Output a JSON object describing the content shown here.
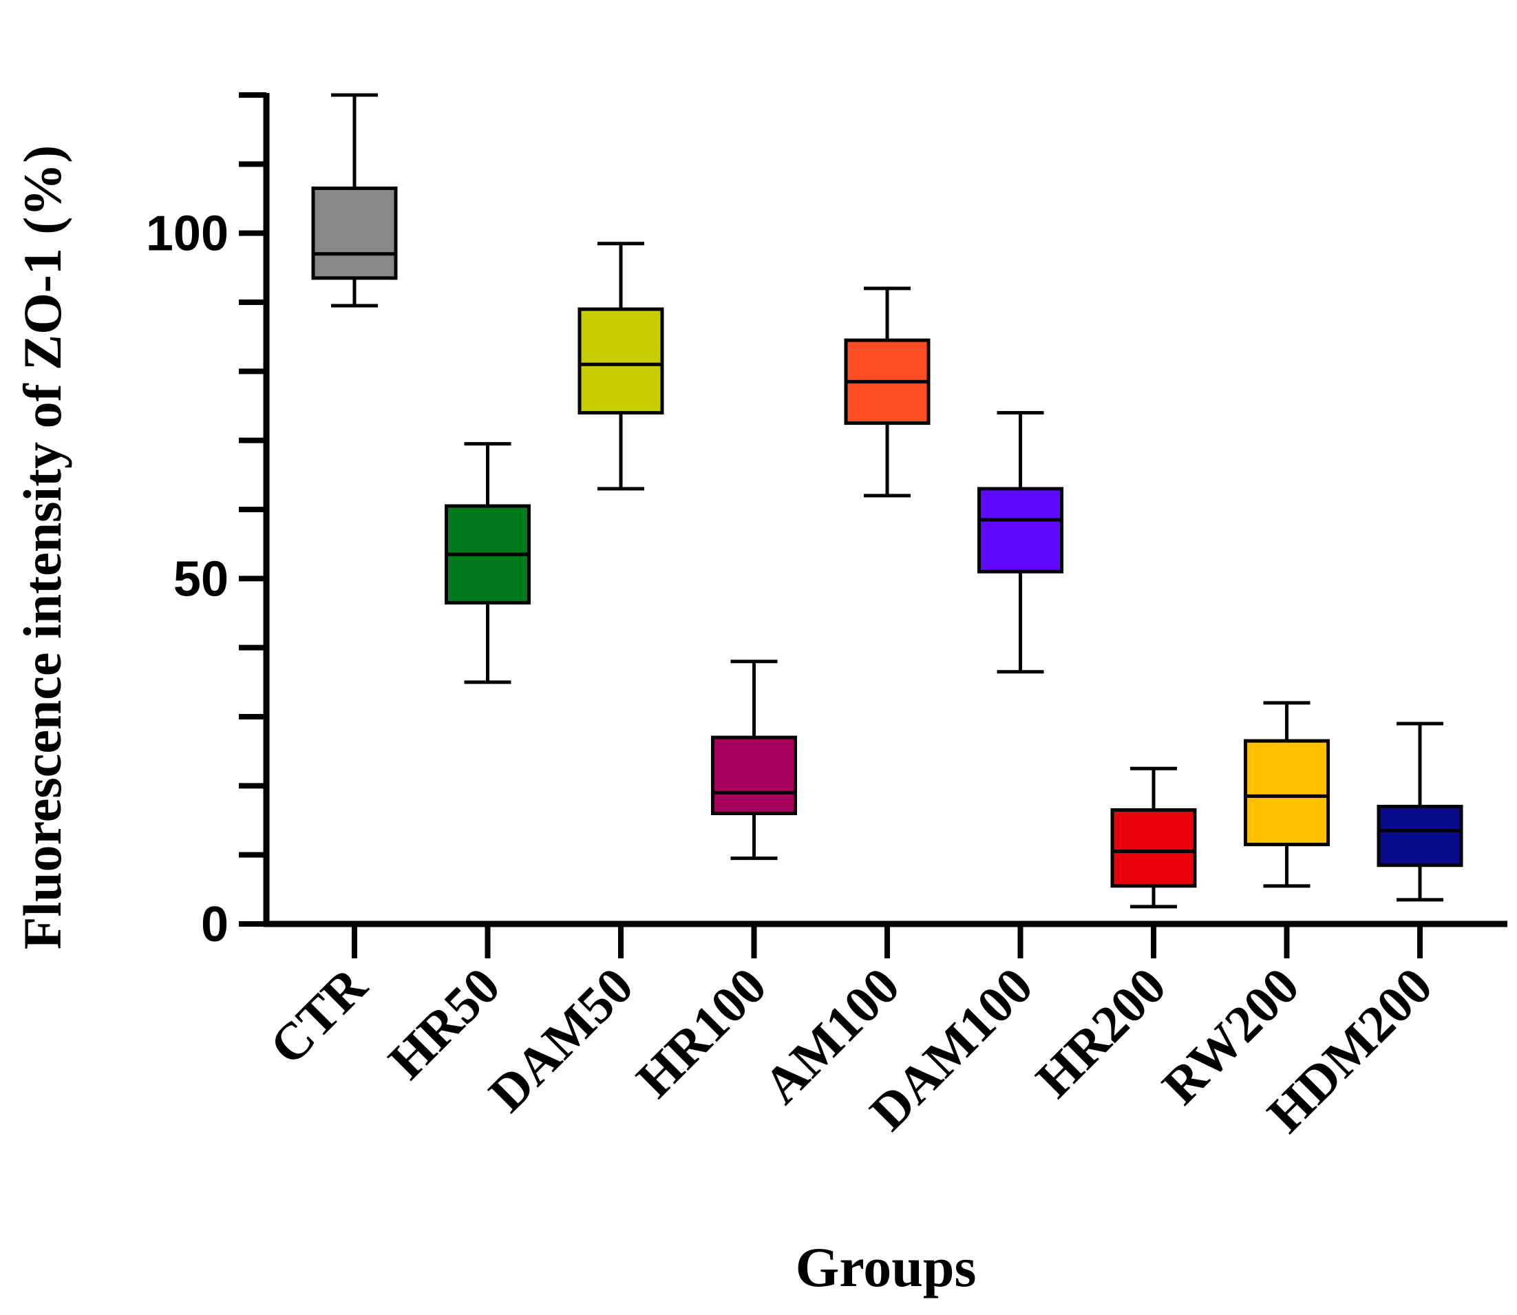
{
  "chart_data": {
    "type": "box",
    "title": "",
    "xlabel": "Groups",
    "ylabel": "Fluorescence intensity of ZO-1 (%)",
    "ylim": [
      0,
      120
    ],
    "yticks_major": [
      0,
      50,
      100
    ],
    "yticks_minor": [
      10,
      20,
      30,
      40,
      60,
      70,
      80,
      90,
      110,
      120
    ],
    "grid": false,
    "legend": "none",
    "categories": [
      "CTR",
      "HR50",
      "DAM50",
      "HR100",
      "AM100",
      "DAM100",
      "HR200",
      "RW200",
      "HDM200"
    ],
    "series": [
      {
        "category": "CTR",
        "min": 89.5,
        "q1": 93.5,
        "median": 97.0,
        "q3": 106.5,
        "max": 120.0,
        "color": "#888888"
      },
      {
        "category": "HR50",
        "min": 35.0,
        "q1": 46.5,
        "median": 53.5,
        "q3": 60.5,
        "max": 69.5,
        "color": "#007A1C"
      },
      {
        "category": "DAM50",
        "min": 63.0,
        "q1": 74.0,
        "median": 81.0,
        "q3": 89.0,
        "max": 98.5,
        "color": "#C8CC00"
      },
      {
        "category": "HR100",
        "min": 9.5,
        "q1": 16.0,
        "median": 19.0,
        "q3": 27.0,
        "max": 38.0,
        "color": "#A8005E"
      },
      {
        "category": "AM100",
        "min": 62.0,
        "q1": 72.5,
        "median": 78.5,
        "q3": 84.5,
        "max": 92.0,
        "color": "#FF4C25"
      },
      {
        "category": "DAM100",
        "min": 36.5,
        "q1": 51.0,
        "median": 58.5,
        "q3": 63.0,
        "max": 74.0,
        "color": "#5F0AFF"
      },
      {
        "category": "HR200",
        "min": 2.5,
        "q1": 5.5,
        "median": 10.5,
        "q3": 16.5,
        "max": 22.5,
        "color": "#E8000B"
      },
      {
        "category": "RW200",
        "min": 5.5,
        "q1": 11.5,
        "median": 18.5,
        "q3": 26.5,
        "max": 32.0,
        "color": "#FFC000"
      },
      {
        "category": "HDM200",
        "min": 3.5,
        "q1": 8.5,
        "median": 13.5,
        "q3": 17.0,
        "max": 29.0,
        "color": "#0A0A8C"
      }
    ]
  }
}
